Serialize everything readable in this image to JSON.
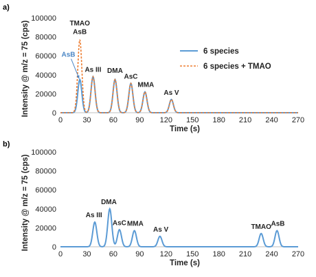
{
  "chart_data": [
    {
      "panel": "a)",
      "type": "line",
      "xlabel": "Time (s)",
      "ylabel": "Intensity @ m/z = 75 (cps)",
      "xlim": [
        0,
        270
      ],
      "ylim": [
        0,
        100000
      ],
      "x_ticks": [
        "0",
        "30",
        "60",
        "90",
        "120",
        "150",
        "180",
        "210",
        "240",
        "270"
      ],
      "y_ticks": [
        "0",
        "20000",
        "40000",
        "60000",
        "80000",
        "100000"
      ],
      "legend": "center-right",
      "series": [
        {
          "name": "6 species",
          "color": "#5b9bd5",
          "style": "solid",
          "peaks": [
            {
              "t": 22,
              "h": 35000
            },
            {
              "t": 37,
              "h": 38000
            },
            {
              "t": 62,
              "h": 35000
            },
            {
              "t": 80,
              "h": 31000
            },
            {
              "t": 96,
              "h": 22000
            },
            {
              "t": 126,
              "h": 14000
            }
          ]
        },
        {
          "name": "6 species + TMAO",
          "color": "#ed7d31",
          "style": "dashed",
          "peaks": [
            {
              "t": 22,
              "h": 77000
            },
            {
              "t": 37,
              "h": 38000
            },
            {
              "t": 62,
              "h": 35000
            },
            {
              "t": 80,
              "h": 31000
            },
            {
              "t": 96,
              "h": 22000
            },
            {
              "t": 126,
              "h": 14000
            }
          ]
        }
      ],
      "annotations": [
        {
          "text": "TMAO",
          "t": 22,
          "y": 92000,
          "color": "#222222"
        },
        {
          "text": "AsB",
          "t": 22,
          "y": 83000,
          "color": "#222222"
        },
        {
          "text": "AsB",
          "t": 9,
          "y": 59000,
          "color": "#4a86c5",
          "arrow_to": [
            22,
            36000
          ]
        },
        {
          "text": "As III",
          "t": 37,
          "y": 43000,
          "color": "#222222"
        },
        {
          "text": "DMA",
          "t": 62,
          "y": 42000,
          "color": "#222222"
        },
        {
          "text": "AsC",
          "t": 80,
          "y": 36000,
          "color": "#222222"
        },
        {
          "text": "MMA",
          "t": 97,
          "y": 27000,
          "color": "#222222"
        },
        {
          "text": "As V",
          "t": 126,
          "y": 19000,
          "color": "#222222"
        }
      ]
    },
    {
      "panel": "b)",
      "type": "line",
      "xlabel": "Time (s)",
      "ylabel": "Intensity @ m/z = 75 (cps)",
      "xlim": [
        0,
        270
      ],
      "ylim": [
        0,
        100000
      ],
      "x_ticks": [
        "0",
        "30",
        "60",
        "90",
        "120",
        "150",
        "180",
        "210",
        "240",
        "270"
      ],
      "y_ticks": [
        "0",
        "20000",
        "40000",
        "60000",
        "80000",
        "100000"
      ],
      "series": [
        {
          "name": "",
          "color": "#5b9bd5",
          "style": "solid",
          "peaks": [
            {
              "t": 39,
              "h": 26000
            },
            {
              "t": 56,
              "h": 40000
            },
            {
              "t": 67,
              "h": 18000
            },
            {
              "t": 84,
              "h": 17000
            },
            {
              "t": 113,
              "h": 11000
            },
            {
              "t": 228,
              "h": 14000
            },
            {
              "t": 246,
              "h": 17000
            }
          ]
        }
      ],
      "annotations": [
        {
          "text": "As III",
          "t": 38,
          "y": 31000,
          "color": "#222222"
        },
        {
          "text": "DMA",
          "t": 55,
          "y": 45000,
          "color": "#222222"
        },
        {
          "text": "AsC",
          "t": 67,
          "y": 23000,
          "color": "#222222"
        },
        {
          "text": "MMA",
          "t": 85,
          "y": 22000,
          "color": "#222222"
        },
        {
          "text": "As V",
          "t": 114,
          "y": 16000,
          "color": "#222222"
        },
        {
          "text": "TMAO",
          "t": 228,
          "y": 19000,
          "color": "#222222"
        },
        {
          "text": "AsB",
          "t": 247,
          "y": 22000,
          "color": "#222222"
        }
      ]
    }
  ]
}
